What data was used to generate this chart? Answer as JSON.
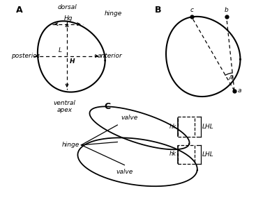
{
  "panel_A_label": "A",
  "panel_B_label": "B",
  "panel_C_label": "C",
  "text_dorsal": "dorsal",
  "text_ventral": "ventral\napex",
  "text_anterior": "anterior",
  "text_posterior": "posterior",
  "text_hinge_A": "hinge",
  "text_Hg": "Hg",
  "text_L": "L",
  "text_H": "H",
  "text_a": "a",
  "text_b": "b",
  "text_c": "c",
  "text_A_angle": "A",
  "text_hinge_C": "hinge",
  "text_valve_top": "valve",
  "text_valve_bot": "valve",
  "text_hk_top": "hk",
  "text_hk_bot": "hk",
  "text_LHL_top": "LHL",
  "text_LHL_bot": "LHL",
  "line_color": "#000000",
  "bg_color": "#ffffff"
}
